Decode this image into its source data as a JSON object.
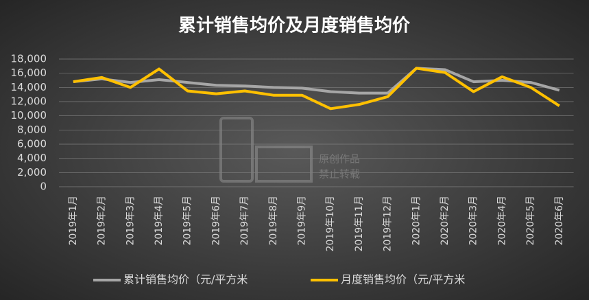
{
  "chart_data": {
    "type": "line",
    "title": "累计销售均价及月度销售均价",
    "categories": [
      "2019年1月",
      "2019年2月",
      "2019年3月",
      "2019年4月",
      "2019年5月",
      "2019年6月",
      "2019年7月",
      "2019年8月",
      "2019年9月",
      "2019年10月",
      "2019年11月",
      "2019年12月",
      "2020年1月",
      "2020年2月",
      "2020年3月",
      "2020年4月",
      "2020年5月",
      "2020年6月"
    ],
    "series": [
      {
        "name": "累计销售均价（元/平方米",
        "color": "#a6a6a6",
        "values": [
          14800,
          15200,
          14700,
          15100,
          14700,
          14300,
          14200,
          14000,
          13900,
          13400,
          13200,
          13200,
          16700,
          16500,
          14800,
          15000,
          14700,
          13600
        ]
      },
      {
        "name": "月度销售均价（元/平方米",
        "color": "#ffc000",
        "values": [
          14800,
          15400,
          14000,
          16600,
          13500,
          13100,
          13500,
          12900,
          12900,
          11000,
          11600,
          12700,
          16700,
          16100,
          13400,
          15500,
          14000,
          11400
        ]
      }
    ],
    "ylim": [
      0,
      18000
    ],
    "yticks": [
      0,
      {
        "value": 2000,
        "label": "2,000"
      },
      {
        "value": 4000,
        "label": "4,000"
      },
      {
        "value": 6000,
        "label": "6,000"
      },
      {
        "value": 8000,
        "label": "8,000"
      },
      {
        "value": 10000,
        "label": "10,000"
      },
      {
        "value": 12000,
        "label": "12,000"
      },
      {
        "value": 14000,
        "label": "14,000"
      },
      {
        "value": 16000,
        "label": "16,000"
      },
      {
        "value": 18000,
        "label": "18,000"
      }
    ],
    "grid": true,
    "legend": "bottom",
    "watermark": [
      "原创作品",
      "禁止转载"
    ]
  }
}
